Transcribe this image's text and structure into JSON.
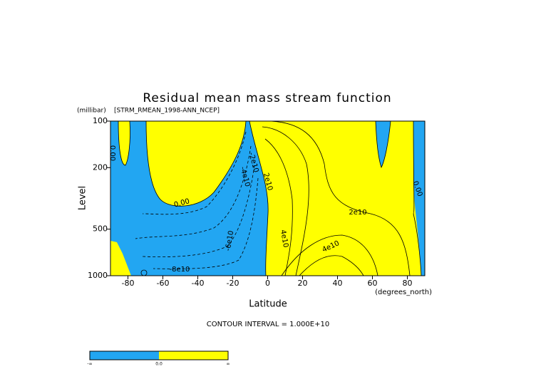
{
  "chart_data": {
    "type": "contour",
    "title": "Residual mean mass stream function",
    "subtitle": "[STRM_RMEAN_1998-ANN_NCEP]",
    "y_unit": "(millibar)",
    "y_label": "Level",
    "x_label": "Latitude",
    "x_unit": "(degrees_north)",
    "note": "CONTOUR INTERVAL = 1.000E+10",
    "xlim": [
      -90,
      90
    ],
    "xticks": [
      -80,
      -60,
      -40,
      -20,
      0,
      20,
      40,
      60,
      80
    ],
    "ylim": [
      1000,
      100
    ],
    "yticks": [
      100,
      200,
      500,
      1000
    ],
    "y_log": true,
    "negative_color": "#22a6f2",
    "positive_color": "#ffff00",
    "contour_labels": [
      "0.00",
      "0.00",
      "0.00",
      "-2e10",
      "-4e10",
      "2e10",
      "2e10",
      "-6e10",
      "4e10",
      "4e10",
      "-8e10"
    ],
    "colorbar_labels": [
      "-∞",
      "0.0",
      "∞"
    ]
  }
}
